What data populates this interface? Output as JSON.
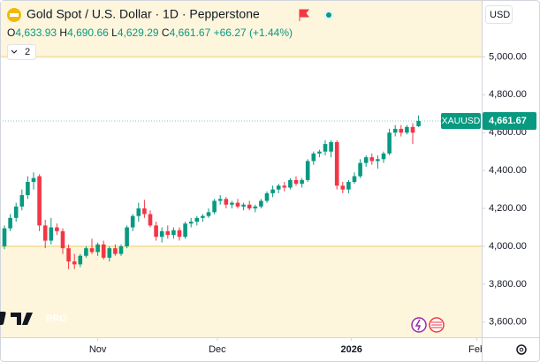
{
  "header": {
    "title": "Gold Spot / U.S. Dollar · 1D · Pepperstone",
    "ohlc": [
      {
        "key": "O",
        "value": "4,633.93"
      },
      {
        "key": "H",
        "value": "4,690.66"
      },
      {
        "key": "L",
        "value": "4,629.29"
      },
      {
        "key": "C",
        "value": "4,661.67"
      }
    ],
    "change": "+66.27 (+1.44%)",
    "indicator_count": "2",
    "currency": "USD",
    "symbol": "XAUUSD",
    "logo": "PRO"
  },
  "chart_data": {
    "type": "candlestick",
    "up_color": "#089981",
    "down_color": "#f23645",
    "band_color": "#fdf6dc",
    "band_border": "#f6e3a6",
    "shaded_above": 5000,
    "shaded_below": 4000,
    "last_price": {
      "value": 4661.67,
      "label": "4,661.67"
    },
    "ylim": [
      3520,
      5300
    ],
    "yticks": [
      {
        "value": 3600,
        "label": "3,600.00"
      },
      {
        "value": 3800,
        "label": "3,800.00"
      },
      {
        "value": 4000,
        "label": "4,000.00"
      },
      {
        "value": 4200,
        "label": "4,200.00"
      },
      {
        "value": 4400,
        "label": "4,400.00"
      },
      {
        "value": 4600,
        "label": "4,600.00"
      },
      {
        "value": 4800,
        "label": "4,800.00"
      },
      {
        "value": 5000,
        "label": "5,000.00"
      }
    ],
    "xticks": [
      {
        "value": 16,
        "label": "Nov"
      },
      {
        "value": 36.5,
        "label": "Dec"
      },
      {
        "value": 59.5,
        "label": "2026"
      },
      {
        "value": 81,
        "label": "Feb"
      }
    ],
    "open": [
      4000,
      4095,
      4150,
      4210,
      4270,
      4340,
      4370,
      4110,
      4030,
      4100,
      4080,
      3990,
      3920,
      3905,
      3950,
      3990,
      3970,
      4010,
      3940,
      3990,
      3960,
      4000,
      4100,
      4160,
      4200,
      4170,
      4110,
      4050,
      4080,
      4060,
      4085,
      4050,
      4120,
      4130,
      4150,
      4160,
      4180,
      4240,
      4250,
      4220,
      4230,
      4210,
      4220,
      4200,
      4210,
      4240,
      4280,
      4300,
      4320,
      4310,
      4350,
      4330,
      4350,
      4450,
      4490,
      4500,
      4500,
      4550,
      4320,
      4300,
      4340,
      4370,
      4440,
      4470,
      4450,
      4460,
      4490,
      4600,
      4620,
      4600,
      4630,
      4633.93
    ],
    "high": [
      4110,
      4170,
      4230,
      4300,
      4370,
      4390,
      4380,
      4140,
      4150,
      4120,
      4095,
      4010,
      3960,
      3960,
      4000,
      4040,
      4020,
      4030,
      4000,
      4010,
      4010,
      4110,
      4170,
      4230,
      4245,
      4190,
      4130,
      4100,
      4110,
      4100,
      4100,
      4130,
      4150,
      4160,
      4170,
      4200,
      4250,
      4270,
      4260,
      4240,
      4250,
      4230,
      4240,
      4220,
      4250,
      4290,
      4320,
      4330,
      4340,
      4360,
      4370,
      4360,
      4460,
      4500,
      4510,
      4560,
      4560,
      4560,
      4340,
      4350,
      4390,
      4460,
      4480,
      4490,
      4480,
      4500,
      4620,
      4640,
      4640,
      4640,
      4650,
      4690.66
    ],
    "low": [
      3985,
      4080,
      4130,
      4190,
      4250,
      4300,
      4080,
      3990,
      4010,
      4060,
      3960,
      3880,
      3880,
      3890,
      3940,
      3960,
      3950,
      3930,
      3920,
      3950,
      3950,
      3990,
      4080,
      4130,
      4150,
      4100,
      4030,
      4020,
      4040,
      4040,
      4030,
      4040,
      4100,
      4110,
      4130,
      4150,
      4170,
      4220,
      4200,
      4200,
      4200,
      4190,
      4190,
      4180,
      4200,
      4230,
      4260,
      4280,
      4290,
      4300,
      4320,
      4310,
      4340,
      4430,
      4470,
      4480,
      4470,
      4300,
      4280,
      4280,
      4330,
      4360,
      4420,
      4430,
      4410,
      4440,
      4480,
      4580,
      4580,
      4590,
      4540,
      4629.29
    ],
    "close": [
      4095,
      4150,
      4210,
      4270,
      4340,
      4360,
      4110,
      4030,
      4100,
      4080,
      3990,
      3920,
      3905,
      3950,
      3990,
      3970,
      4010,
      3940,
      3990,
      3960,
      4000,
      4100,
      4160,
      4200,
      4170,
      4110,
      4050,
      4080,
      4060,
      4085,
      4050,
      4120,
      4130,
      4150,
      4160,
      4180,
      4240,
      4250,
      4220,
      4230,
      4210,
      4220,
      4200,
      4210,
      4240,
      4280,
      4300,
      4320,
      4310,
      4350,
      4330,
      4350,
      4450,
      4490,
      4500,
      4540,
      4550,
      4320,
      4300,
      4340,
      4370,
      4440,
      4470,
      4450,
      4460,
      4490,
      4600,
      4620,
      4600,
      4630,
      4600,
      4661.67
    ]
  }
}
